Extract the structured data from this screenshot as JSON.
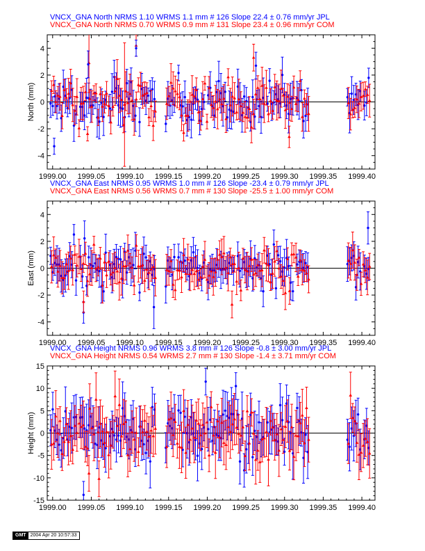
{
  "colors": {
    "jpl": "#0000ff",
    "com": "#ff0000",
    "axis": "#000000"
  },
  "chart_data": [
    {
      "type": "scatter",
      "component": "north",
      "ylabel": "North (mm)",
      "ylim": [
        -5,
        5
      ],
      "yticks": [
        -4,
        -2,
        0,
        2,
        4
      ],
      "xlim": [
        1998.993,
        1999.417
      ],
      "xticks": [
        1999.0,
        1999.05,
        1999.1,
        1999.15,
        1999.2,
        1999.25,
        1999.3,
        1999.35,
        1999.4
      ],
      "xtick_labels": [
        "1999.00",
        "1999.05",
        "1999.10",
        "1999.15",
        "1999.20",
        "1999.25",
        "1999.30",
        "1999.35",
        "1999.40"
      ],
      "title_lines": [
        "VNCX_GNA North NRMS 1.10 WRMS  1.1 mm # 126 Slope  22.4 ±  0.76 mm/yr JPL",
        "VNCX_GNA North NRMS 0.70 WRMS  0.9 mm # 131 Slope  23.4 ±  0.96 mm/yr COM"
      ],
      "series": [
        {
          "solution": "JPL",
          "color": "#0000ff",
          "count": 126,
          "wrms_mm": 1.1,
          "slope": 22.4,
          "slope_sigma": 0.76,
          "nrms": 1.1
        },
        {
          "solution": "COM",
          "color": "#ff0000",
          "count": 131,
          "wrms_mm": 0.9,
          "slope": 23.4,
          "slope_sigma": 0.96,
          "nrms": 0.7
        }
      ],
      "outliers": [
        {
          "solution": "JPL",
          "x": 1999.002,
          "y": -3.3,
          "err": 0.6
        },
        {
          "solution": "COM",
          "x": 1999.047,
          "y": 2.9,
          "err": 2.2
        },
        {
          "solution": "JPL",
          "x": 1999.046,
          "y": 2.8,
          "err": 1.0
        },
        {
          "solution": "COM",
          "x": 1999.093,
          "y": -0.2,
          "err": 4.6
        },
        {
          "solution": "COM",
          "x": 1999.108,
          "y": 4.2,
          "err": 0.8
        },
        {
          "solution": "JPL",
          "x": 1999.108,
          "y": 4.0,
          "err": 0.6
        },
        {
          "solution": "COM",
          "x": 1999.26,
          "y": 3.3,
          "err": 1.0
        },
        {
          "solution": "JPL",
          "x": 1999.263,
          "y": 2.7,
          "err": 1.0
        },
        {
          "solution": "COM",
          "x": 1999.306,
          "y": -2.6,
          "err": 0.8
        }
      ],
      "noise": 0.9,
      "err_range": [
        0.5,
        1.5
      ],
      "seed": 11
    },
    {
      "type": "scatter",
      "component": "east",
      "ylabel": "East (mm)",
      "ylim": [
        -5,
        5
      ],
      "yticks": [
        -4,
        -2,
        0,
        2,
        4
      ],
      "xlim": [
        1998.993,
        1999.417
      ],
      "xticks": [
        1999.0,
        1999.05,
        1999.1,
        1999.15,
        1999.2,
        1999.25,
        1999.3,
        1999.35,
        1999.4
      ],
      "xtick_labels": [
        "1999.00",
        "1999.05",
        "1999.10",
        "1999.15",
        "1999.20",
        "1999.25",
        "1999.30",
        "1999.35",
        "1999.40"
      ],
      "title_lines": [
        "VNCX_GNA East NRMS 0.95 WRMS  1.0 mm # 126 Slope  -23.4 ±  0.79 mm/yr JPL",
        "VNCX_GNA East NRMS 0.56 WRMS  0.7 mm # 130 Slope  -25.5 ±  1.00 mm/yr COM"
      ],
      "series": [
        {
          "solution": "JPL",
          "color": "#0000ff",
          "count": 126,
          "wrms_mm": 1.0,
          "slope": -23.4,
          "slope_sigma": 0.79,
          "nrms": 0.95
        },
        {
          "solution": "COM",
          "color": "#ff0000",
          "count": 130,
          "wrms_mm": 0.7,
          "slope": -25.5,
          "slope_sigma": 1.0,
          "nrms": 0.56
        }
      ],
      "outliers": [
        {
          "solution": "JPL",
          "x": 1999.04,
          "y": -3.3,
          "err": 0.8
        },
        {
          "solution": "COM",
          "x": 1999.04,
          "y": -2.5,
          "err": 0.8
        },
        {
          "solution": "JPL",
          "x": 1999.131,
          "y": -2.9,
          "err": 1.6
        },
        {
          "solution": "COM",
          "x": 1999.232,
          "y": -2.7,
          "err": 1.0
        },
        {
          "solution": "JPL",
          "x": 1999.408,
          "y": 3.0,
          "err": 1.2
        }
      ],
      "noise": 0.8,
      "err_range": [
        0.6,
        1.4
      ],
      "seed": 23
    },
    {
      "type": "scatter",
      "component": "height",
      "ylabel": "Height (mm)",
      "ylim": [
        -15,
        15
      ],
      "yticks": [
        -15,
        -10,
        -5,
        0,
        5,
        10,
        15
      ],
      "xlim": [
        1998.993,
        1999.417
      ],
      "xticks": [
        1999.0,
        1999.05,
        1999.1,
        1999.15,
        1999.2,
        1999.25,
        1999.3,
        1999.35,
        1999.4
      ],
      "xtick_labels": [
        "1999.00",
        "1999.05",
        "1999.10",
        "1999.15",
        "1999.20",
        "1999.25",
        "1999.30",
        "1999.35",
        "1999.40"
      ],
      "title_lines": [
        "VNCX_GNA Height NRMS 0.96 WRMS  3.8 mm # 126 Slope   -0.8 ±  3.00 mm/yr JPL",
        "VNCX_GNA Height NRMS 0.54 WRMS  2.7 mm # 130 Slope   -1.4 ±  3.71 mm/yr COM"
      ],
      "series": [
        {
          "solution": "JPL",
          "color": "#0000ff",
          "count": 126,
          "wrms_mm": 3.8,
          "slope": -0.8,
          "slope_sigma": 3.0,
          "nrms": 0.96
        },
        {
          "solution": "COM",
          "color": "#ff0000",
          "count": 130,
          "wrms_mm": 2.7,
          "slope": -1.4,
          "slope_sigma": 3.71,
          "nrms": 0.54
        }
      ],
      "outliers": [
        {
          "solution": "JPL",
          "x": 1999.04,
          "y": -13.8,
          "err": 3.0
        },
        {
          "solution": "JPL",
          "x": 1999.198,
          "y": 11.5,
          "err": 3.0
        },
        {
          "solution": "JPL",
          "x": 1999.237,
          "y": 10.5,
          "err": 3.0
        },
        {
          "solution": "COM",
          "x": 1999.047,
          "y": -9.0,
          "err": 4.0
        },
        {
          "solution": "COM",
          "x": 1999.06,
          "y": -10.2,
          "err": 4.0
        }
      ],
      "noise": 3.2,
      "err_range": [
        3.0,
        6.0
      ],
      "seed": 37
    }
  ],
  "sampling": {
    "segments": [
      [
        1998.998,
        1999.133
      ],
      [
        1999.147,
        1999.333
      ],
      [
        1999.382,
        1999.41
      ]
    ],
    "step": 0.00274
  },
  "stamp": {
    "logo": "GMT",
    "timestamp": "2004 Apr 20 10:57:33"
  }
}
